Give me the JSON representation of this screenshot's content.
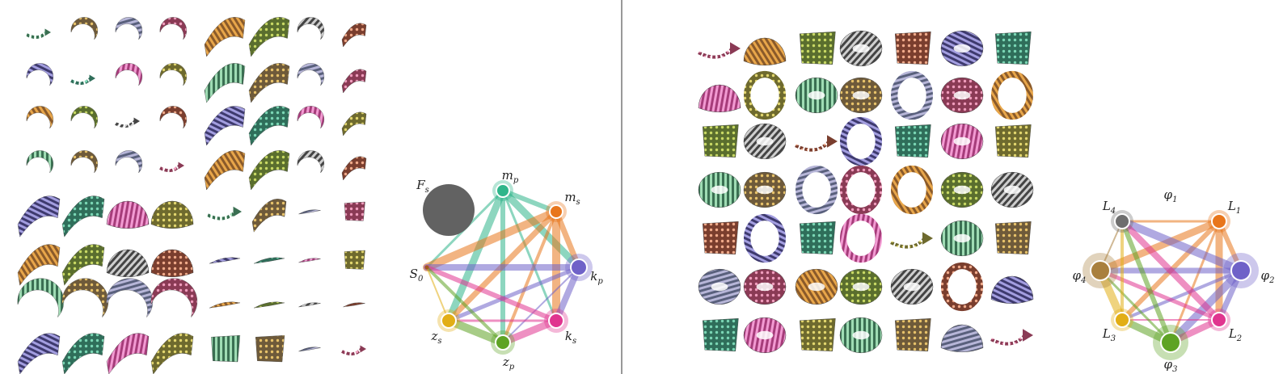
{
  "left_panel": {
    "graph": {
      "nodes": [
        {
          "id": "F_s",
          "base": "F",
          "sub": "s",
          "color": "#626262"
        },
        {
          "id": "m_p",
          "base": "m",
          "sub": "p",
          "color": "#2fb58a"
        },
        {
          "id": "m_s",
          "base": "m",
          "sub": "s",
          "color": "#e8761c"
        },
        {
          "id": "k_p",
          "base": "k",
          "sub": "p",
          "color": "#6f62c8"
        },
        {
          "id": "k_s",
          "base": "k",
          "sub": "s",
          "color": "#e0358f"
        },
        {
          "id": "z_p",
          "base": "z",
          "sub": "p",
          "color": "#5ea324"
        },
        {
          "id": "z_s",
          "base": "z",
          "sub": "s",
          "color": "#e2ae16"
        },
        {
          "id": "S_0",
          "base": "S",
          "sub": "0",
          "color": "#a25a1e"
        }
      ]
    }
  },
  "right_panel": {
    "graph": {
      "nodes": [
        {
          "id": "phi_1",
          "base": "φ",
          "sub": "1",
          "color": "#777777"
        },
        {
          "id": "L_1",
          "base": "L",
          "sub": "1",
          "color": "#e8761c"
        },
        {
          "id": "phi_2",
          "base": "φ",
          "sub": "2",
          "color": "#6f62c8"
        },
        {
          "id": "L_2",
          "base": "L",
          "sub": "2",
          "color": "#e0358f"
        },
        {
          "id": "phi_3",
          "base": "φ",
          "sub": "3",
          "color": "#5ea324"
        },
        {
          "id": "L_3",
          "base": "L",
          "sub": "3",
          "color": "#e2ae16"
        },
        {
          "id": "phi_4",
          "base": "φ",
          "sub": "4",
          "color": "#a9803e"
        },
        {
          "id": "L_4",
          "base": "L",
          "sub": "4",
          "color": "#6e6e6e"
        }
      ]
    }
  },
  "colors": {
    "divider": "#555555",
    "palettes": [
      [
        "#3a6f52",
        "#9fdcb4"
      ],
      [
        "#6e5a3a",
        "#e7c26a"
      ],
      [
        "#59607c",
        "#b7b6d8"
      ],
      [
        "#8a3a55",
        "#ef9cbc"
      ],
      [
        "#8a5a2a",
        "#e8a64a"
      ],
      [
        "#5a6e2e",
        "#c8d964"
      ],
      [
        "#444444",
        "#cfcfcf"
      ],
      [
        "#7a3e2e",
        "#f0aa8a"
      ],
      [
        "#3e3a6e",
        "#a39ee0"
      ],
      [
        "#2f6e5a",
        "#7ad6b4"
      ],
      [
        "#a63c7a",
        "#f29ad2"
      ],
      [
        "#6e6a2e",
        "#e2d66e"
      ]
    ]
  }
}
